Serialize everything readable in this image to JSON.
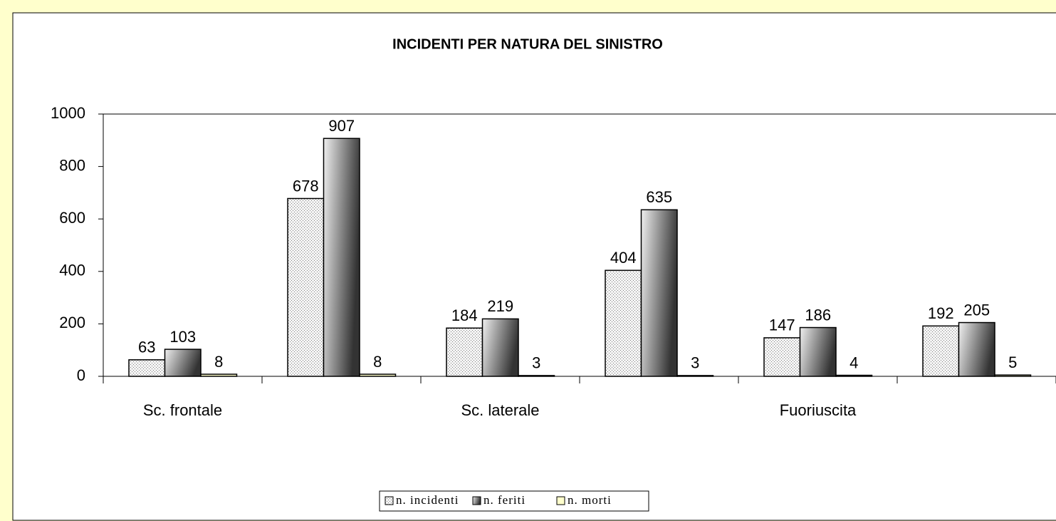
{
  "chart_data": {
    "type": "bar",
    "title": "INCIDENTI PER NATURA DEL SINISTRO",
    "categories": [
      "Sc. frontale",
      null,
      "Sc. laterale",
      null,
      "Fuoriuscita",
      null
    ],
    "series": [
      {
        "name": "n. incidenti",
        "color": "#808080",
        "values": [
          63,
          678,
          184,
          404,
          147,
          192
        ]
      },
      {
        "name": "n. feriti",
        "color": "#333333",
        "values": [
          103,
          907,
          219,
          635,
          186,
          205
        ]
      },
      {
        "name": "n. morti",
        "color": "#ffffcc",
        "values": [
          8,
          8,
          3,
          3,
          4,
          5
        ]
      }
    ],
    "ylim": [
      0,
      1000
    ],
    "yticks": [
      0,
      200,
      400,
      600,
      800,
      1000
    ],
    "grid": false,
    "legend": "bottom"
  }
}
